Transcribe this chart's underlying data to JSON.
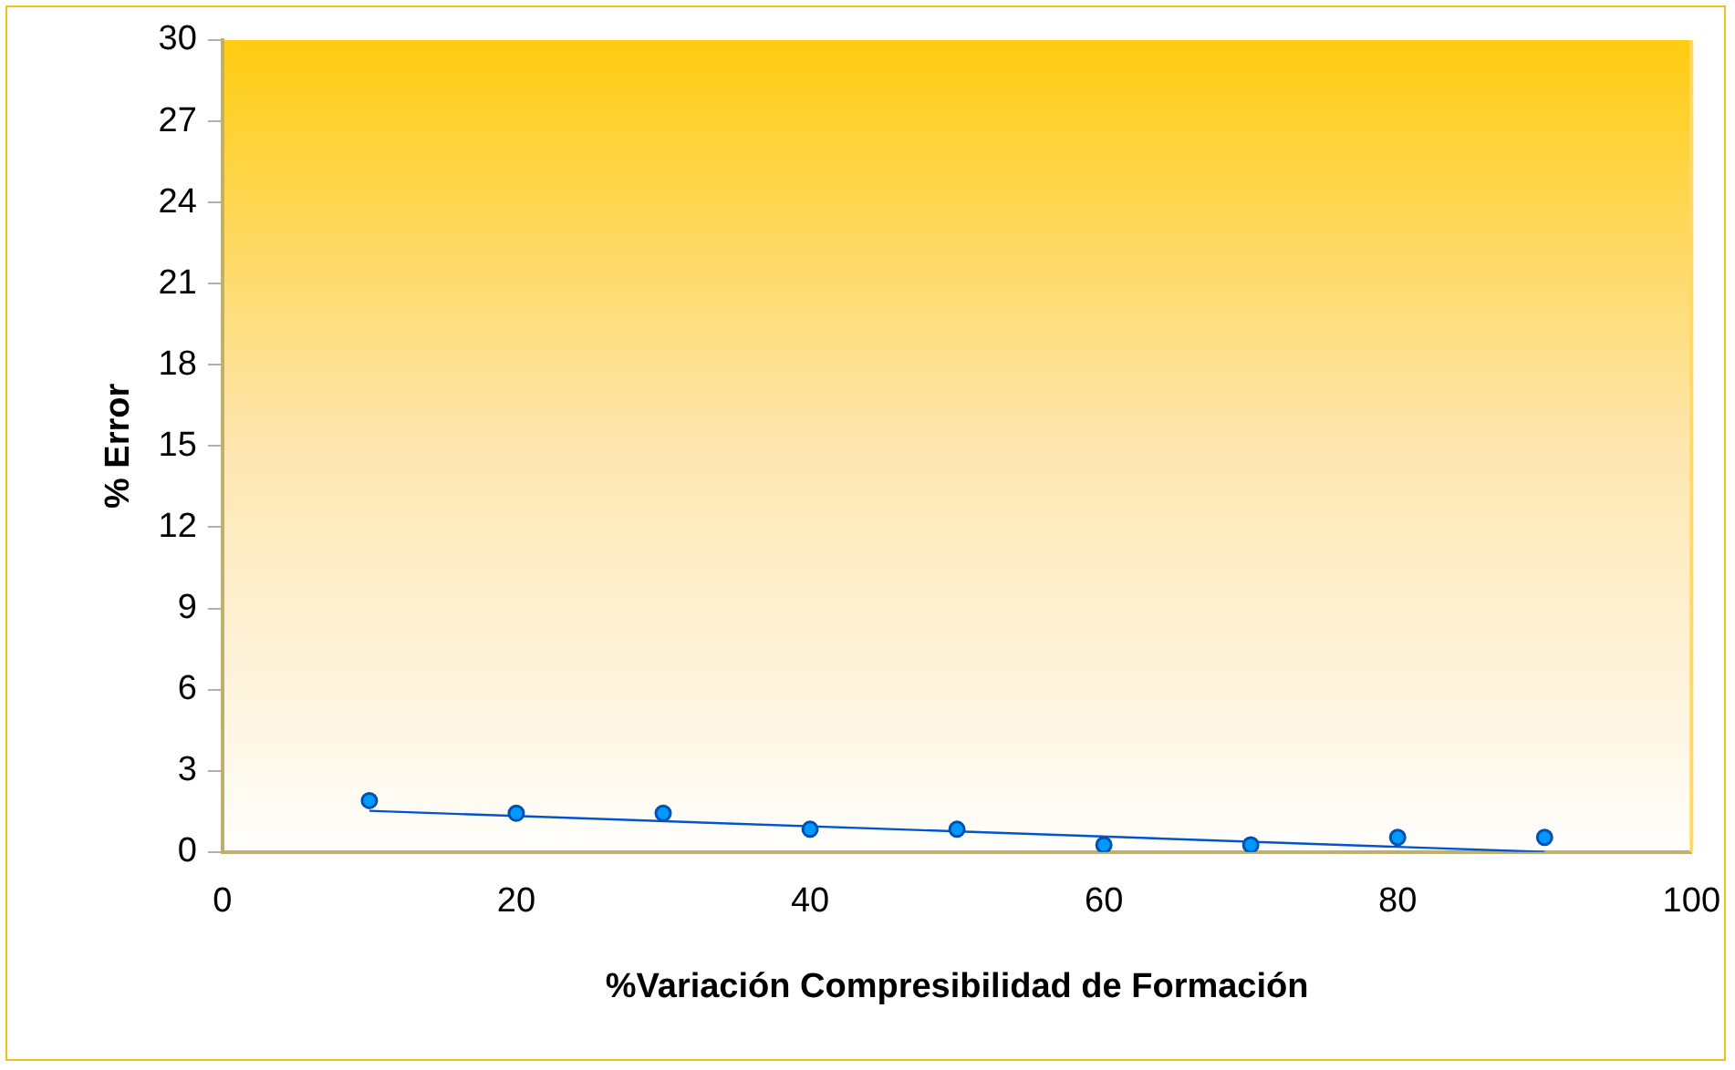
{
  "chart_data": {
    "type": "scatter",
    "xlabel": "%Variación Compresibilidad de Formación",
    "ylabel": "% Error",
    "xlim": [
      0,
      100
    ],
    "xticks": [
      0,
      20,
      40,
      60,
      80,
      100
    ],
    "ylim": [
      0,
      30
    ],
    "yticks": [
      0,
      3,
      6,
      9,
      12,
      15,
      18,
      21,
      24,
      27,
      30
    ],
    "grid": false,
    "legend": false,
    "marker": "circle",
    "series": [
      {
        "color": "#0099ff",
        "x": [
          10,
          20,
          30,
          40,
          50,
          60,
          70,
          80,
          90
        ],
        "values": [
          1.9,
          1.43,
          1.43,
          0.84,
          0.84,
          0.26,
          0.26,
          0.54,
          0.54
        ]
      },
      {
        "type": "line",
        "color": "#0055cc",
        "line_style": "solid",
        "marker": "none",
        "x": [
          10,
          90
        ],
        "values": [
          1.52,
          0
        ]
      }
    ]
  }
}
